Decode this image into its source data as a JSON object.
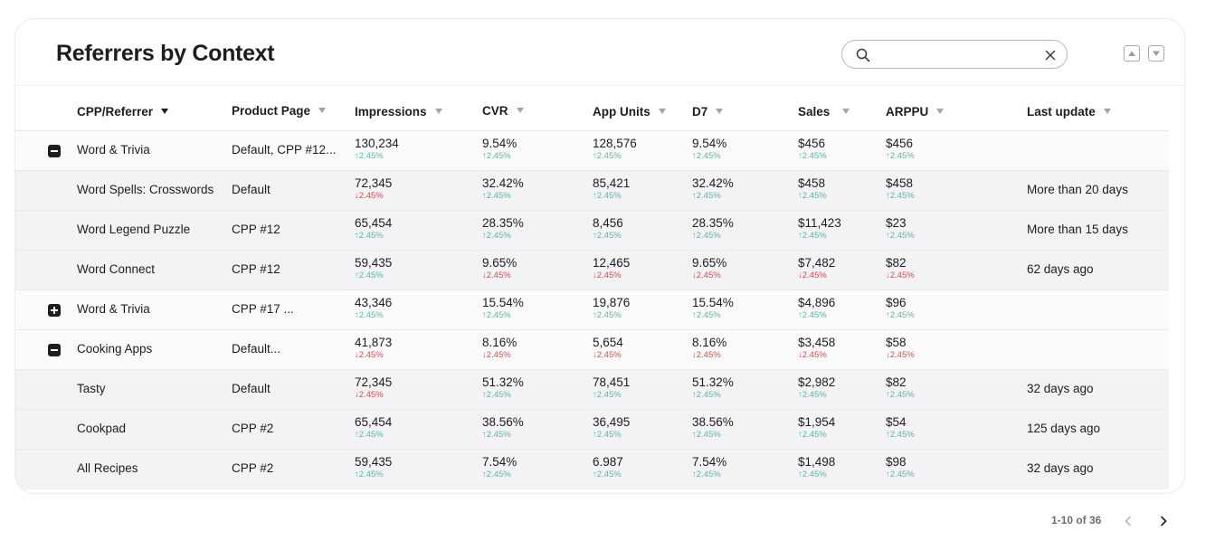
{
  "header": {
    "title": "Referrers by Context",
    "search_value": "",
    "search_placeholder": ""
  },
  "columns": [
    {
      "label": "CPP/Referrer",
      "sorted": true
    },
    {
      "label": "Product Page"
    },
    {
      "label": "Impressions"
    },
    {
      "label": "CVR"
    },
    {
      "label": "App Units"
    },
    {
      "label": "D7"
    },
    {
      "label": "Sales"
    },
    {
      "label": "ARPPU"
    },
    {
      "label": "Last update"
    }
  ],
  "rows": [
    {
      "type": "parent",
      "expanded": true,
      "name": "Word & Trivia",
      "page": "Default, CPP #12...",
      "impressions": {
        "v": "130,234",
        "c": "2.45%",
        "d": "up"
      },
      "cvr": {
        "v": "9.54%",
        "c": "2.45%",
        "d": "up"
      },
      "units": {
        "v": "128,576",
        "c": "2.45%",
        "d": "up"
      },
      "d7": {
        "v": "9.54%",
        "c": "2.45%",
        "d": "up"
      },
      "sales": {
        "v": "$456",
        "c": "2.45%",
        "d": "up"
      },
      "arppu": {
        "v": "$456",
        "c": "2.45%",
        "d": "up"
      },
      "updated": ""
    },
    {
      "type": "child",
      "name": "Word Spells: Crosswords",
      "page": "Default",
      "impressions": {
        "v": "72,345",
        "c": "2.45%",
        "d": "down"
      },
      "cvr": {
        "v": "32.42%",
        "c": "2.45%",
        "d": "up"
      },
      "units": {
        "v": "85,421",
        "c": "2.45%",
        "d": "up"
      },
      "d7": {
        "v": "32.42%",
        "c": "2.45%",
        "d": "up"
      },
      "sales": {
        "v": "$458",
        "c": "2.45%",
        "d": "up"
      },
      "arppu": {
        "v": "$458",
        "c": "2.45%",
        "d": "up"
      },
      "updated": "More than 20 days"
    },
    {
      "type": "child",
      "name": "Word Legend Puzzle",
      "page": "CPP #12",
      "impressions": {
        "v": "65,454",
        "c": "2.45%",
        "d": "up"
      },
      "cvr": {
        "v": "28.35%",
        "c": "2.45%",
        "d": "up"
      },
      "units": {
        "v": "8,456",
        "c": "2.45%",
        "d": "up"
      },
      "d7": {
        "v": "28.35%",
        "c": "2.45%",
        "d": "up"
      },
      "sales": {
        "v": "$11,423",
        "c": "2.45%",
        "d": "up"
      },
      "arppu": {
        "v": "$23",
        "c": "2.45%",
        "d": "up"
      },
      "updated": "More than 15 days"
    },
    {
      "type": "child",
      "name": "Word Connect",
      "page": "CPP #12",
      "impressions": {
        "v": "59,435",
        "c": "2.45%",
        "d": "up"
      },
      "cvr": {
        "v": "9.65%",
        "c": "2.45%",
        "d": "down"
      },
      "units": {
        "v": "12,465",
        "c": "2.45%",
        "d": "down"
      },
      "d7": {
        "v": "9.65%",
        "c": "2.45%",
        "d": "down"
      },
      "sales": {
        "v": "$7,482",
        "c": "2.45%",
        "d": "down"
      },
      "arppu": {
        "v": "$82",
        "c": "2.45%",
        "d": "down"
      },
      "updated": "62 days ago"
    },
    {
      "type": "parent",
      "expanded": false,
      "name": "Word & Trivia",
      "page": "CPP #17 ...",
      "impressions": {
        "v": "43,346",
        "c": "2.45%",
        "d": "up"
      },
      "cvr": {
        "v": "15.54%",
        "c": "2.45%",
        "d": "up"
      },
      "units": {
        "v": "19,876",
        "c": "2.45%",
        "d": "up"
      },
      "d7": {
        "v": "15.54%",
        "c": "2.45%",
        "d": "up"
      },
      "sales": {
        "v": "$4,896",
        "c": "2.45%",
        "d": "up"
      },
      "arppu": {
        "v": "$96",
        "c": "2.45%",
        "d": "up"
      },
      "updated": ""
    },
    {
      "type": "parent",
      "expanded": true,
      "name": "Cooking Apps",
      "page": "Default...",
      "impressions": {
        "v": "41,873",
        "c": "2.45%",
        "d": "down"
      },
      "cvr": {
        "v": "8.16%",
        "c": "2.45%",
        "d": "down"
      },
      "units": {
        "v": "5,654",
        "c": "2.45%",
        "d": "down"
      },
      "d7": {
        "v": "8.16%",
        "c": "2.45%",
        "d": "down"
      },
      "sales": {
        "v": "$3,458",
        "c": "2.45%",
        "d": "down"
      },
      "arppu": {
        "v": "$58",
        "c": "2.45%",
        "d": "down"
      },
      "updated": ""
    },
    {
      "type": "child",
      "name": "Tasty",
      "page": "Default",
      "impressions": {
        "v": "72,345",
        "c": "2.45%",
        "d": "down"
      },
      "cvr": {
        "v": "51.32%",
        "c": "2.45%",
        "d": "up"
      },
      "units": {
        "v": "78,451",
        "c": "2.45%",
        "d": "up"
      },
      "d7": {
        "v": "51.32%",
        "c": "2.45%",
        "d": "up"
      },
      "sales": {
        "v": "$2,982",
        "c": "2.45%",
        "d": "up"
      },
      "arppu": {
        "v": "$82",
        "c": "2.45%",
        "d": "up"
      },
      "updated": "32 days ago"
    },
    {
      "type": "child",
      "name": "Cookpad",
      "page": "CPP #2",
      "impressions": {
        "v": "65,454",
        "c": "2.45%",
        "d": "up"
      },
      "cvr": {
        "v": "38.56%",
        "c": "2.45%",
        "d": "up"
      },
      "units": {
        "v": "36,495",
        "c": "2.45%",
        "d": "up"
      },
      "d7": {
        "v": "38.56%",
        "c": "2.45%",
        "d": "up"
      },
      "sales": {
        "v": "$1,954",
        "c": "2.45%",
        "d": "up"
      },
      "arppu": {
        "v": "$54",
        "c": "2.45%",
        "d": "up"
      },
      "updated": "125 days ago"
    },
    {
      "type": "child",
      "name": "All Recipes",
      "page": "CPP #2",
      "impressions": {
        "v": "59,435",
        "c": "2.45%",
        "d": "up"
      },
      "cvr": {
        "v": "7.54%",
        "c": "2.45%",
        "d": "up"
      },
      "units": {
        "v": "6.987",
        "c": "2.45%",
        "d": "up"
      },
      "d7": {
        "v": "7.54%",
        "c": "2.45%",
        "d": "up"
      },
      "sales": {
        "v": "$1,498",
        "c": "2.45%",
        "d": "up"
      },
      "arppu": {
        "v": "$98",
        "c": "2.45%",
        "d": "up"
      },
      "updated": "32 days ago"
    }
  ],
  "pagination": {
    "label": "1-10 of 36"
  },
  "colors": {
    "up": "#57b7a0",
    "down": "#e0474c",
    "text": "#1d1d1f",
    "child_row": "#f3f3f5"
  },
  "icons": {
    "search": "search-icon",
    "clear": "close-icon",
    "expand": "plus-square-icon",
    "collapse": "minus-square-icon"
  }
}
